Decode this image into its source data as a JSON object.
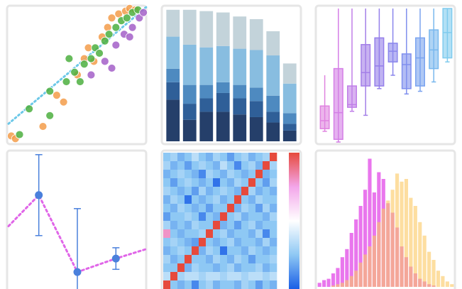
{
  "chart_data": [
    {
      "type": "scatter",
      "xlim": [
        0,
        100
      ],
      "ylim": [
        0,
        100
      ],
      "line": {
        "color": "#6cc8e8",
        "x": [
          0,
          100
        ],
        "values": [
          14,
          100
        ]
      },
      "series": [
        {
          "color": "#f39c4a",
          "x": [
            2,
            5,
            25,
            35,
            50,
            55,
            62,
            68,
            72,
            75,
            80,
            85,
            88,
            92,
            40,
            58
          ],
          "values": [
            5,
            3,
            12,
            35,
            50,
            62,
            60,
            78,
            85,
            92,
            95,
            97,
            99,
            98,
            30,
            70
          ]
        },
        {
          "color": "#4caf3f",
          "x": [
            8,
            15,
            30,
            42,
            48,
            52,
            55,
            60,
            63,
            66,
            70,
            73,
            78,
            82,
            86,
            90,
            94,
            44,
            30
          ],
          "values": [
            6,
            25,
            38,
            45,
            52,
            45,
            58,
            62,
            70,
            66,
            75,
            80,
            85,
            90,
            92,
            96,
            98,
            62,
            20
          ]
        },
        {
          "color": "#a35fc8",
          "x": [
            60,
            70,
            78,
            84,
            90,
            95,
            98,
            88,
            75
          ],
          "values": [
            50,
            60,
            72,
            80,
            85,
            92,
            96,
            78,
            55
          ]
        }
      ]
    },
    {
      "type": "bar",
      "stacked": true,
      "ylim": [
        0,
        100
      ],
      "series": [
        {
          "color": "#253f6a",
          "values": [
            31,
            16,
            22,
            22,
            20,
            18,
            14,
            8
          ]
        },
        {
          "color": "#2f5f98",
          "values": [
            13,
            12,
            10,
            14,
            12,
            12,
            8,
            5
          ]
        },
        {
          "color": "#4e8ac0",
          "values": [
            10,
            14,
            10,
            8,
            10,
            10,
            12,
            8
          ]
        },
        {
          "color": "#88bde0",
          "values": [
            24,
            30,
            28,
            27,
            27,
            28,
            30,
            22
          ]
        },
        {
          "color": "#c3d3da",
          "values": [
            20,
            26,
            27,
            25,
            24,
            23,
            18,
            15
          ]
        }
      ]
    },
    {
      "type": "box",
      "ylim": [
        0,
        100
      ],
      "boxes": [
        {
          "color": "#e083e0",
          "low": 8,
          "q1": 10,
          "median": 16,
          "q3": 27,
          "high": 50
        },
        {
          "color": "#d47fe6",
          "low": 0,
          "q1": 2,
          "median": 22,
          "q3": 55,
          "high": 100
        },
        {
          "color": "#c07fe8",
          "low": 23,
          "q1": 26,
          "median": 28,
          "q3": 42,
          "high": 100
        },
        {
          "color": "#a47fe8",
          "low": 20,
          "q1": 42,
          "median": 52,
          "q3": 73,
          "high": 100
        },
        {
          "color": "#957fea",
          "low": 40,
          "q1": 42,
          "median": 57,
          "q3": 78,
          "high": 100
        },
        {
          "color": "#8a86ec",
          "low": 50,
          "q1": 60,
          "median": 68,
          "q3": 74,
          "high": 100
        },
        {
          "color": "#7f8fee",
          "low": 36,
          "q1": 40,
          "median": 58,
          "q3": 66,
          "high": 100
        },
        {
          "color": "#7aa3ef",
          "low": 38,
          "q1": 42,
          "median": 63,
          "q3": 78,
          "high": 100
        },
        {
          "color": "#79b8ee",
          "low": 45,
          "q1": 55,
          "median": 69,
          "q3": 84,
          "high": 100
        },
        {
          "color": "#7fcbee",
          "low": 60,
          "q1": 63,
          "median": 82,
          "q3": 100,
          "high": 100
        }
      ]
    },
    {
      "type": "line",
      "xlim": [
        0,
        100
      ],
      "ylim": [
        0,
        100
      ],
      "line": {
        "color": "#e066e8",
        "x": [
          0,
          22,
          50,
          78,
          100
        ],
        "values": [
          45,
          68,
          11,
          21,
          28
        ]
      },
      "points": {
        "color": "#4a80dc",
        "x": [
          22,
          50,
          78
        ],
        "values": [
          68,
          11,
          21
        ],
        "errors": [
          30,
          47,
          8
        ]
      }
    },
    {
      "type": "heatmap",
      "zlim": [
        -1,
        1
      ],
      "colorscale": [
        "#1a5ee6",
        "#8ec8f4",
        "#ffffff",
        "#f3a6ea",
        "#e64a3c"
      ],
      "z": [
        [
          -0.5,
          -0.4,
          -0.6,
          -0.5,
          -0.3,
          -0.5,
          -0.6,
          -0.4,
          -0.5,
          -0.7,
          -0.5,
          -0.4,
          -0.6,
          -0.5,
          -0.4,
          1
        ],
        [
          -0.4,
          -0.6,
          -0.5,
          -0.7,
          -0.5,
          -0.4,
          -0.5,
          -0.6,
          -0.3,
          -0.5,
          -0.8,
          -0.5,
          -0.4,
          -0.6,
          1,
          -0.4
        ],
        [
          -0.6,
          -0.5,
          -0.4,
          -0.5,
          -0.6,
          -0.8,
          -0.4,
          -0.5,
          -0.6,
          -0.4,
          -0.5,
          -0.6,
          -0.5,
          1,
          -0.6,
          -0.5
        ],
        [
          -0.5,
          -0.7,
          -0.5,
          -0.4,
          -0.5,
          -0.6,
          -0.5,
          -0.9,
          -0.5,
          -0.6,
          -0.4,
          -0.5,
          1,
          -0.5,
          -0.7,
          -0.4
        ],
        [
          -0.4,
          -0.5,
          -0.6,
          -0.5,
          -0.7,
          -0.4,
          -0.6,
          -0.5,
          -0.4,
          -0.5,
          -0.6,
          1,
          -0.4,
          -0.6,
          -0.5,
          -0.6
        ],
        [
          -0.6,
          -0.4,
          -0.5,
          -0.9,
          -0.5,
          -0.6,
          -0.5,
          -0.4,
          -0.6,
          -0.5,
          1,
          -0.5,
          -0.6,
          -0.4,
          -0.5,
          -0.5
        ],
        [
          -0.5,
          -0.6,
          -0.4,
          -0.5,
          -0.6,
          -0.5,
          -0.7,
          -0.5,
          -0.5,
          1,
          -0.6,
          -0.4,
          -0.5,
          -0.7,
          -0.4,
          -0.6
        ],
        [
          -0.7,
          -0.5,
          -0.5,
          -0.4,
          -0.5,
          -0.8,
          -0.5,
          -0.6,
          1,
          -0.5,
          -0.4,
          -0.6,
          -0.5,
          -0.5,
          -0.6,
          -0.4
        ],
        [
          -0.4,
          -0.6,
          -0.5,
          -0.6,
          -0.4,
          -0.5,
          -0.5,
          1,
          -0.6,
          -0.5,
          -0.7,
          -0.5,
          -0.4,
          -0.6,
          -0.5,
          -0.5
        ],
        [
          0.6,
          -0.5,
          -0.6,
          -0.5,
          -0.5,
          -0.4,
          1,
          -0.5,
          -0.4,
          -0.6,
          -0.5,
          -0.5,
          -0.6,
          -0.4,
          -0.8,
          -0.5
        ],
        [
          -0.5,
          -0.4,
          -0.5,
          -0.6,
          -0.7,
          1,
          -0.5,
          -0.6,
          -0.5,
          -0.4,
          -0.6,
          -0.5,
          -0.5,
          -0.6,
          -0.4,
          -0.6
        ],
        [
          -0.6,
          -0.5,
          -0.4,
          -0.5,
          1,
          -0.6,
          -0.4,
          -0.5,
          -0.9,
          -0.5,
          -0.5,
          -0.6,
          -0.4,
          -0.5,
          -0.6,
          -0.5
        ],
        [
          -0.4,
          -0.6,
          -0.5,
          1,
          -0.5,
          -0.5,
          -0.6,
          -0.4,
          -0.5,
          -0.6,
          -0.4,
          -0.5,
          -0.7,
          -0.5,
          -0.5,
          -0.4
        ],
        [
          -0.5,
          -0.5,
          1,
          -0.6,
          -0.4,
          -0.5,
          -0.5,
          -0.6,
          -0.5,
          -0.4,
          -0.6,
          -0.5,
          -0.5,
          -0.4,
          -0.6,
          -0.5
        ],
        [
          -0.3,
          1,
          -0.4,
          -0.3,
          -0.3,
          -0.4,
          -0.3,
          -0.3,
          -0.4,
          -0.3,
          -0.3,
          -0.4,
          -0.3,
          -0.3,
          -0.4,
          -0.3
        ],
        [
          1,
          -0.5,
          -0.6,
          -0.5,
          -0.8,
          -0.5,
          -0.4,
          -0.6,
          -0.5,
          -0.5,
          -0.6,
          -0.4,
          -0.5,
          -0.7,
          -0.5,
          -0.6
        ]
      ]
    },
    {
      "type": "histogram",
      "ylim": [
        0,
        100
      ],
      "bins": [
        0,
        1,
        2,
        3,
        4,
        5,
        6,
        7,
        8,
        9,
        10,
        11,
        12,
        13,
        14,
        15,
        16,
        17,
        18,
        19,
        20,
        21,
        22,
        23,
        24,
        25,
        26,
        27,
        28,
        29,
        30
      ],
      "series": [
        {
          "color": "#e354e8",
          "values": [
            3,
            5,
            6,
            10,
            14,
            22,
            28,
            40,
            50,
            60,
            72,
            95,
            70,
            85,
            80,
            62,
            55,
            44,
            30,
            22,
            15,
            10,
            6,
            4,
            2,
            1,
            0,
            0,
            0,
            0
          ]
        },
        {
          "color": "#fbc860",
          "values": [
            0,
            0,
            0,
            1,
            2,
            3,
            5,
            8,
            12,
            18,
            24,
            30,
            38,
            48,
            58,
            64,
            72,
            84,
            78,
            80,
            66,
            60,
            48,
            38,
            26,
            20,
            12,
            8,
            4,
            2
          ]
        }
      ]
    }
  ]
}
